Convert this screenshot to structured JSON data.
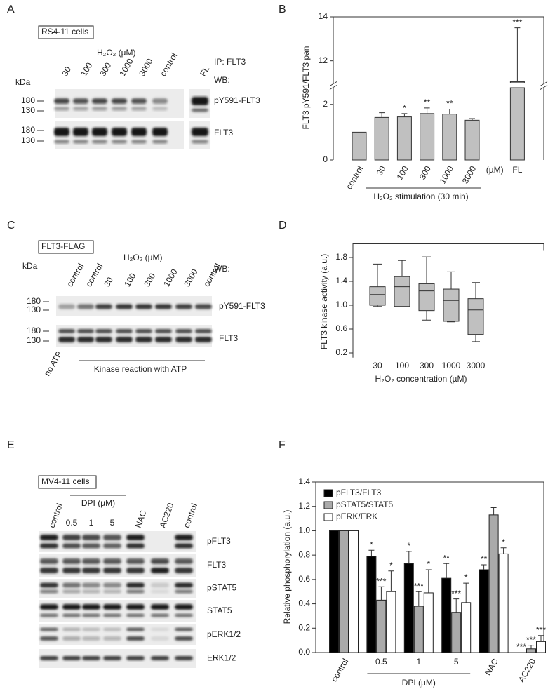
{
  "panel_labels": [
    "A",
    "B",
    "C",
    "D",
    "E",
    "F"
  ],
  "blots": [
    {
      "cell_label": "RS4-11 cells",
      "treatment": "H₂O₂ (µM)",
      "ip": "IP: FLT3",
      "wb": "WB:",
      "kda": "kDa",
      "lanes": [
        "30",
        "100",
        "300",
        "1000",
        "3000",
        "control",
        "FL"
      ],
      "rows": [
        {
          "name": "pY591-FLT3",
          "markers": [
            "180",
            "130"
          ]
        },
        {
          "name": "FLT3",
          "markers": [
            "180",
            "130"
          ]
        }
      ]
    },
    {
      "cell_label": "FLT3-FLAG",
      "treatment": "H₂O₂ (µM)",
      "wb": "WB:",
      "kda": "kDa",
      "lanes": [
        "control",
        "control",
        "30",
        "100",
        "300",
        "1000",
        "3000",
        "control"
      ],
      "rows": [
        {
          "name": "pY591-FLT3",
          "markers": [
            "180",
            "130"
          ]
        },
        {
          "name": "FLT3",
          "markers": [
            "180",
            "130"
          ]
        }
      ],
      "no_atp": "no ATP",
      "reaction": "Kinase reaction with ATP"
    },
    {
      "cell_label": "MV4-11 cells",
      "treatment": "DPI (µM)",
      "lanes": [
        "control",
        "0.5",
        "1",
        "5",
        "NAC",
        "AC220",
        "control"
      ],
      "rows": [
        {
          "name": "pFLT3"
        },
        {
          "name": "FLT3"
        },
        {
          "name": "pSTAT5"
        },
        {
          "name": "STAT5"
        },
        {
          "name": "pERK1/2"
        },
        {
          "name": "ERK1/2"
        }
      ]
    }
  ],
  "chart_data": [
    {
      "type": "bar",
      "y_label": "FLT3 pY591/FLT3 pan",
      "x_label": "H₂O₂ stimulation (30 min)",
      "x_unit": "(µM)",
      "categories": [
        "control",
        "30",
        "100",
        "300",
        "1000",
        "3000",
        "FL"
      ],
      "values": [
        1,
        1.53,
        1.55,
        1.67,
        1.65,
        1.43,
        11.05
      ],
      "errors": [
        null,
        0.17,
        0.12,
        0.2,
        0.18,
        0.06,
        2.45
      ],
      "annotations": [
        null,
        null,
        "*",
        "**",
        "**",
        null,
        "***"
      ],
      "color": "#c0c0c0",
      "ylim": [
        0,
        14
      ],
      "ybreak": [
        2.6,
        11
      ],
      "yticks": [
        0,
        2,
        12,
        14
      ]
    },
    {
      "type": "box",
      "y_label": "FLT3 kinase activity (a.u.)",
      "x_label": "H₂O₂ concentration (µM)",
      "categories": [
        "30",
        "100",
        "300",
        "1000",
        "3000"
      ],
      "min": [
        0.98,
        0.97,
        0.75,
        0.72,
        0.39
      ],
      "q1": [
        1.0,
        0.98,
        0.91,
        0.73,
        0.51
      ],
      "median": [
        1.18,
        1.31,
        1.24,
        1.08,
        0.92
      ],
      "q3": [
        1.31,
        1.48,
        1.36,
        1.27,
        1.11
      ],
      "max": [
        1.69,
        1.75,
        1.81,
        1.56,
        1.38
      ],
      "color": "#c0c0c0",
      "ylim": [
        0.12,
        2.03
      ],
      "yticks": [
        0.2,
        0.6,
        {
          "value": 1,
          "label": "1.0"
        },
        1.4,
        1.8
      ]
    },
    {
      "type": "grouped_bar",
      "y_label": "Relative phosphorylation (a.u.)",
      "group_label": "DPI (µM)",
      "categories": [
        "control",
        "0.5",
        "1",
        "5",
        "NAC",
        "AC220"
      ],
      "series": [
        {
          "name": "pFLT3/FLT3",
          "color": "#000000",
          "values": [
            1,
            0.79,
            0.73,
            0.61,
            0.68,
            0
          ],
          "errors": [
            null,
            0.05,
            0.1,
            0.12,
            0.04,
            null
          ],
          "annotations": [
            null,
            "*",
            "*",
            "**",
            "**",
            "***"
          ]
        },
        {
          "name": "pSTAT5/STAT5",
          "color": "#aaaaaa",
          "values": [
            1,
            0.43,
            0.38,
            0.33,
            1.13,
            0.03
          ],
          "errors": [
            null,
            0.11,
            0.12,
            0.11,
            0.06,
            0.03
          ],
          "annotations": [
            null,
            "***",
            "***",
            "***",
            null,
            "***"
          ]
        },
        {
          "name": "pERK/ERK",
          "color": "#ffffff",
          "values": [
            1,
            0.5,
            0.49,
            0.41,
            0.81,
            0.09
          ],
          "errors": [
            null,
            0.17,
            0.19,
            0.16,
            0.05,
            0.05
          ],
          "annotations": [
            null,
            "*",
            "*",
            "*",
            "*",
            "***"
          ]
        }
      ],
      "ylim": [
        0,
        1.4
      ],
      "yticks": [
        {
          "value": 0,
          "label": "0.0"
        },
        0.2,
        0.4,
        0.6,
        0.8,
        {
          "value": 1,
          "label": "1.0"
        },
        1.2,
        1.4
      ],
      "legend": "upper-left"
    }
  ]
}
